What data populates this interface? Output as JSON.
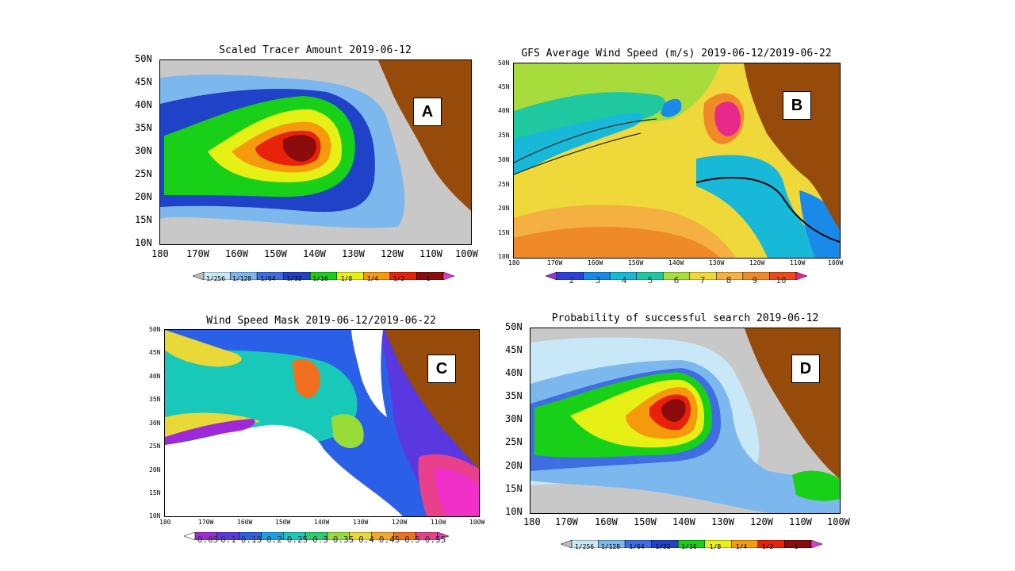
{
  "panels": [
    {
      "id": "A",
      "title": "Scaled Tracer Amount 2019-06-12",
      "badge": "A",
      "lat_labels": [
        "50N",
        "45N",
        "40N",
        "35N",
        "30N",
        "25N",
        "20N",
        "15N",
        "10N"
      ],
      "lon_labels": [
        "180",
        "170W",
        "160W",
        "150W",
        "140W",
        "130W",
        "120W",
        "110W",
        "100W"
      ],
      "colorbar": [
        "1/256",
        "1/128",
        "1/64",
        "1/32",
        "1/16",
        "1/8",
        "1/4",
        "1/2",
        "1"
      ],
      "colors": [
        "#bdbdbd",
        "#c8e8f8",
        "#7cb8ee",
        "#3f6ee3",
        "#1f42c9",
        "#18d018",
        "#e6f014",
        "#f59a0a",
        "#e8220a",
        "#8a0c0c",
        "#d83ad8"
      ]
    },
    {
      "id": "B",
      "title": "GFS Average Wind Speed (m/s) 2019-06-12/2019-06-22",
      "badge": "B",
      "lat_labels": [
        "50N",
        "45N",
        "40N",
        "35N",
        "30N",
        "25N",
        "20N",
        "15N",
        "10N"
      ],
      "lon_labels": [
        "180",
        "170W",
        "160W",
        "150W",
        "140W",
        "130W",
        "120W",
        "110W",
        "100W"
      ],
      "colorbar": [
        "2",
        "3",
        "4",
        "5",
        "6",
        "7",
        "8",
        "9",
        "10"
      ],
      "colors": [
        "#9b2fd6",
        "#2a40d8",
        "#1a8ae8",
        "#18b8d8",
        "#20c8a0",
        "#a8dc3c",
        "#eed83a",
        "#f4b040",
        "#f08a28",
        "#e84a1c",
        "#e8288a"
      ]
    },
    {
      "id": "C",
      "title": "Wind Speed Mask 2019-06-12/2019-06-22",
      "badge": "C",
      "lat_labels": [
        "50N",
        "45N",
        "40N",
        "35N",
        "30N",
        "25N",
        "20N",
        "15N",
        "10N"
      ],
      "lon_labels": [
        "180",
        "170W",
        "160W",
        "150W",
        "140W",
        "130W",
        "120W",
        "110W",
        "100W"
      ],
      "colorbar": [
        "0.05",
        "0.1",
        "0.15",
        "0.2",
        "0.25",
        "0.3",
        "0.35",
        "0.4",
        "0.45",
        "0.5",
        "0.55"
      ],
      "colors": [
        "#ffffff",
        "#a028d8",
        "#5a38e0",
        "#2a60e8",
        "#1aa0e8",
        "#18c8b8",
        "#28d070",
        "#98dc38",
        "#e8d838",
        "#f4a828",
        "#f07020",
        "#e8408a",
        "#f030c8"
      ]
    },
    {
      "id": "D",
      "title": "Probability of successful search 2019-06-12",
      "badge": "D",
      "lat_labels": [
        "50N",
        "45N",
        "40N",
        "35N",
        "30N",
        "25N",
        "20N",
        "15N",
        "10N"
      ],
      "lon_labels": [
        "180",
        "170W",
        "160W",
        "150W",
        "140W",
        "130W",
        "120W",
        "110W",
        "100W"
      ],
      "colorbar": [
        "1/256",
        "1/128",
        "1/64",
        "1/32",
        "1/16",
        "1/8",
        "1/4",
        "1/2",
        "1"
      ],
      "colors": [
        "#bdbdbd",
        "#c8e8f8",
        "#7cb8ee",
        "#3f6ee3",
        "#1f42c9",
        "#18d018",
        "#e6f014",
        "#f59a0a",
        "#e8220a",
        "#8a0c0c",
        "#d83ad8"
      ]
    }
  ],
  "land_color": "#964b0a",
  "ocean_color": "#c8c8c8"
}
